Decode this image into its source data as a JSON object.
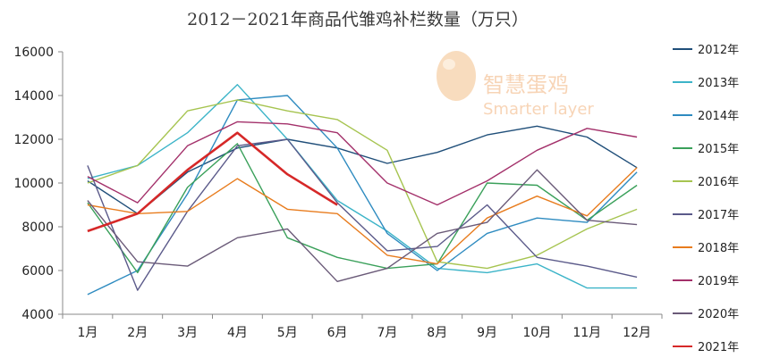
{
  "chart_data": {
    "type": "line",
    "title": "2012－2021年商品代雏鸡补栏数量（万只）",
    "xlabel": "",
    "ylabel": "",
    "categories": [
      "1月",
      "2月",
      "3月",
      "4月",
      "5月",
      "6月",
      "7月",
      "8月",
      "9月",
      "10月",
      "11月",
      "12月"
    ],
    "ylim": [
      4000,
      16000
    ],
    "yticks": [
      4000,
      6000,
      8000,
      10000,
      12000,
      14000,
      16000
    ],
    "ytick_labels": [
      "4000",
      "6000",
      "8000",
      "10000",
      "12000",
      "14000",
      "16000"
    ],
    "grid": false,
    "legend_position": "right",
    "series": [
      {
        "name": "2012年",
        "color": "#1f4e79",
        "values": [
          10100,
          8600,
          10500,
          11600,
          12000,
          11600,
          10900,
          11400,
          12200,
          12600,
          12100,
          10700
        ]
      },
      {
        "name": "2013年",
        "color": "#3cb4c8",
        "values": [
          10200,
          10800,
          12300,
          14500,
          12000,
          9200,
          7800,
          6100,
          5900,
          6300,
          5200,
          5200
        ]
      },
      {
        "name": "2014年",
        "color": "#2e8bc0",
        "values": [
          4900,
          6000,
          9500,
          13800,
          14000,
          11600,
          7700,
          6000,
          7700,
          8400,
          8200,
          10500
        ]
      },
      {
        "name": "2015年",
        "color": "#3aa05a",
        "values": [
          9100,
          5900,
          9800,
          11800,
          7500,
          6600,
          6100,
          6300,
          10000,
          9900,
          8300,
          9900
        ]
      },
      {
        "name": "2016年",
        "color": "#a6c450",
        "values": [
          10000,
          10800,
          13300,
          13800,
          13300,
          12900,
          11500,
          6400,
          6100,
          6700,
          7900,
          8800
        ]
      },
      {
        "name": "2017年",
        "color": "#5b5a8a",
        "values": [
          10800,
          5100,
          8700,
          11700,
          12000,
          9100,
          6900,
          7100,
          9000,
          6600,
          6200,
          5700
        ]
      },
      {
        "name": "2018年",
        "color": "#e87c1e",
        "values": [
          9000,
          8600,
          8700,
          10200,
          8800,
          8600,
          6700,
          6300,
          8400,
          9400,
          8500,
          10700
        ]
      },
      {
        "name": "2019年",
        "color": "#a3306a",
        "values": [
          10300,
          9100,
          11700,
          12800,
          12700,
          12300,
          10000,
          9000,
          10100,
          11500,
          12500,
          12100
        ]
      },
      {
        "name": "2020年",
        "color": "#6a5a78",
        "values": [
          9200,
          6400,
          6200,
          7500,
          7900,
          5500,
          6100,
          7700,
          8200,
          10600,
          8300,
          8100
        ]
      },
      {
        "name": "2021年",
        "color": "#d62828",
        "values": [
          7800,
          8600,
          10600,
          12300,
          10400,
          9000,
          null,
          null,
          null,
          null,
          null,
          null
        ]
      }
    ]
  },
  "watermark": {
    "brand": "智慧蛋鸡",
    "subtitle": "Smarter layer"
  }
}
